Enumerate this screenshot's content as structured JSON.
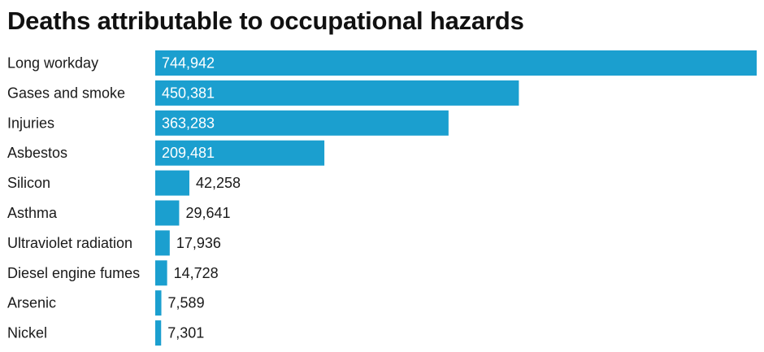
{
  "chart_data": {
    "type": "bar",
    "orientation": "horizontal",
    "title": "Deaths attributable to occupational hazards",
    "categories": [
      "Long workday",
      "Gases and smoke",
      "Injuries",
      "Asbestos",
      "Silicon",
      "Asthma",
      "Ultraviolet radiation",
      "Diesel engine fumes",
      "Arsenic",
      "Nickel"
    ],
    "values": [
      744942,
      450381,
      363283,
      209481,
      42258,
      29641,
      17936,
      14728,
      7589,
      7301
    ],
    "value_labels": [
      "744,942",
      "450,381",
      "363,283",
      "209,481",
      "42,258",
      "29,641",
      "17,936",
      "14,728",
      "7,589",
      "7,301"
    ],
    "xlim": [
      0,
      744942
    ],
    "grid": false,
    "legend": "none",
    "colors": {
      "bar": "#1b9fcf",
      "label_inside": "#ffffff",
      "label_outside": "#1a1a1a"
    }
  }
}
